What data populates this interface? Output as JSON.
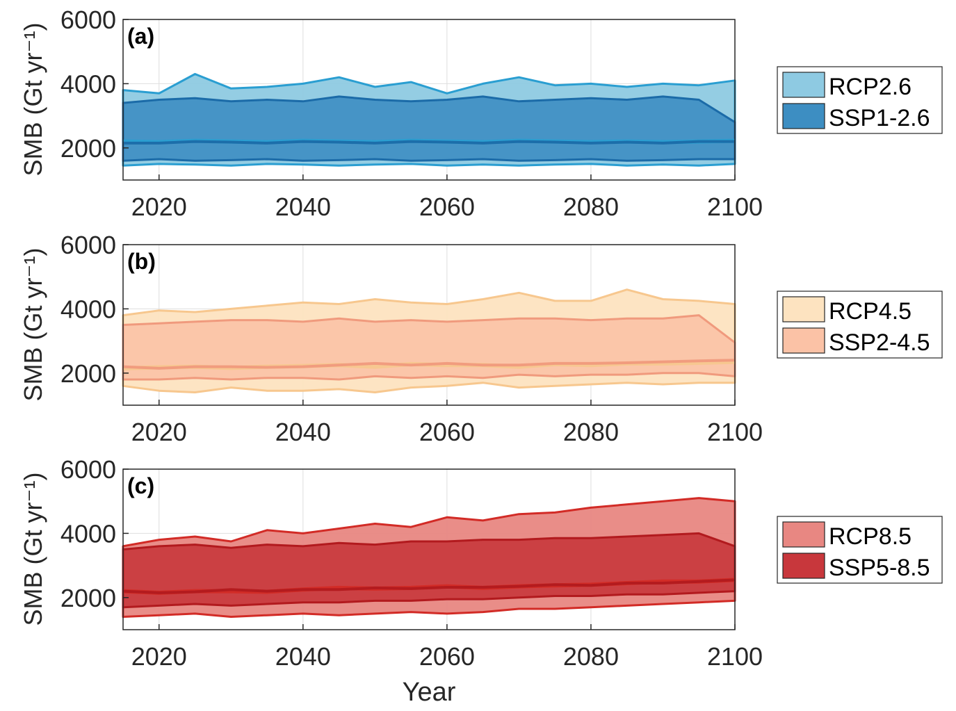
{
  "chart_data": [
    {
      "type": "area",
      "panel_label": "(a)",
      "xlim": [
        2015,
        2100
      ],
      "ylim": [
        1000,
        6000
      ],
      "xticks": [
        2020,
        2040,
        2060,
        2080,
        2100
      ],
      "yticks": [
        2000,
        4000,
        6000
      ],
      "xtick_labels": [
        "2020",
        "2040",
        "2060",
        "2080",
        "2100"
      ],
      "ytick_labels": [
        "2000",
        "4000",
        "6000"
      ],
      "ylabel": "SMB (Gt yr⁻¹)",
      "xlabel": "",
      "grid": true,
      "legend_position": "right",
      "x": [
        2015,
        2020,
        2025,
        2030,
        2035,
        2040,
        2045,
        2050,
        2055,
        2060,
        2065,
        2070,
        2075,
        2080,
        2085,
        2090,
        2095,
        2100
      ],
      "series": [
        {
          "name": "RCP2.6",
          "color": "#8ecae2",
          "edge_color": "#2a9ed1",
          "upper": [
            3800,
            3700,
            4300,
            3850,
            3900,
            4000,
            4200,
            3900,
            4050,
            3700,
            4000,
            4200,
            3950,
            4000,
            3900,
            4000,
            3950,
            4100
          ],
          "lower": [
            1450,
            1500,
            1480,
            1450,
            1500,
            1480,
            1450,
            1480,
            1500,
            1450,
            1480,
            1450,
            1480,
            1500,
            1450,
            1480,
            1450,
            1500
          ],
          "median": [
            2200,
            2180,
            2220,
            2200,
            2180,
            2220,
            2200,
            2180,
            2220,
            2200,
            2180,
            2220,
            2200,
            2180,
            2200,
            2180,
            2200,
            2220
          ]
        },
        {
          "name": "SSP1-2.6",
          "color": "#3d8ec2",
          "edge_color": "#1b6ba8",
          "upper": [
            3400,
            3500,
            3550,
            3450,
            3500,
            3450,
            3600,
            3500,
            3450,
            3500,
            3600,
            3450,
            3500,
            3550,
            3500,
            3600,
            3500,
            2800
          ],
          "lower": [
            1600,
            1650,
            1600,
            1620,
            1650,
            1600,
            1620,
            1650,
            1600,
            1620,
            1650,
            1600,
            1620,
            1650,
            1600,
            1620,
            1650,
            1650
          ],
          "median": [
            2150,
            2150,
            2200,
            2180,
            2150,
            2200,
            2180,
            2150,
            2200,
            2180,
            2150,
            2200,
            2180,
            2150,
            2180,
            2150,
            2200,
            2200
          ]
        }
      ]
    },
    {
      "type": "area",
      "panel_label": "(b)",
      "xlim": [
        2015,
        2100
      ],
      "ylim": [
        1000,
        6000
      ],
      "xticks": [
        2020,
        2040,
        2060,
        2080,
        2100
      ],
      "yticks": [
        2000,
        4000,
        6000
      ],
      "xtick_labels": [
        "2020",
        "2040",
        "2060",
        "2080",
        "2100"
      ],
      "ytick_labels": [
        "2000",
        "4000",
        "6000"
      ],
      "ylabel": "SMB (Gt yr⁻¹)",
      "xlabel": "",
      "grid": true,
      "legend_position": "right",
      "x": [
        2015,
        2020,
        2025,
        2030,
        2035,
        2040,
        2045,
        2050,
        2055,
        2060,
        2065,
        2070,
        2075,
        2080,
        2085,
        2090,
        2095,
        2100
      ],
      "series": [
        {
          "name": "RCP4.5",
          "color": "#fde3c0",
          "edge_color": "#f7c78e",
          "upper": [
            3800,
            3950,
            3900,
            4000,
            4100,
            4200,
            4150,
            4300,
            4200,
            4150,
            4300,
            4500,
            4250,
            4250,
            4600,
            4300,
            4250,
            4150
          ],
          "lower": [
            1600,
            1450,
            1400,
            1550,
            1450,
            1450,
            1500,
            1400,
            1550,
            1600,
            1700,
            1550,
            1600,
            1650,
            1700,
            1650,
            1700,
            1700
          ],
          "median": [
            2150,
            2180,
            2200,
            2160,
            2200,
            2220,
            2250,
            2200,
            2280,
            2250,
            2250,
            2200,
            2280,
            2250,
            2300,
            2300,
            2320,
            2350
          ]
        },
        {
          "name": "SSP2-4.5",
          "color": "#fbc2a6",
          "edge_color": "#f09a7d",
          "upper": [
            3500,
            3550,
            3600,
            3650,
            3650,
            3600,
            3700,
            3600,
            3650,
            3600,
            3650,
            3700,
            3700,
            3650,
            3700,
            3700,
            3800,
            2950
          ],
          "lower": [
            1800,
            1800,
            1850,
            1800,
            1850,
            1850,
            1800,
            1900,
            1850,
            1900,
            1850,
            1950,
            1900,
            1950,
            1950,
            2000,
            2000,
            1900
          ],
          "median": [
            2200,
            2150,
            2200,
            2200,
            2180,
            2200,
            2250,
            2300,
            2250,
            2300,
            2250,
            2250,
            2300,
            2300,
            2320,
            2350,
            2380,
            2400
          ]
        }
      ]
    },
    {
      "type": "area",
      "panel_label": "(c)",
      "xlim": [
        2015,
        2100
      ],
      "ylim": [
        1000,
        6000
      ],
      "xticks": [
        2020,
        2040,
        2060,
        2080,
        2100
      ],
      "yticks": [
        2000,
        4000,
        6000
      ],
      "xtick_labels": [
        "2020",
        "2040",
        "2060",
        "2080",
        "2100"
      ],
      "ytick_labels": [
        "2000",
        "4000",
        "6000"
      ],
      "ylabel": "SMB (Gt yr⁻¹)",
      "xlabel": "Year",
      "grid": true,
      "legend_position": "right",
      "x": [
        2015,
        2020,
        2025,
        2030,
        2035,
        2040,
        2045,
        2050,
        2055,
        2060,
        2065,
        2070,
        2075,
        2080,
        2085,
        2090,
        2095,
        2100
      ],
      "series": [
        {
          "name": "RCP8.5",
          "color": "#e88782",
          "edge_color": "#d22b26",
          "upper": [
            3600,
            3800,
            3900,
            3750,
            4100,
            4000,
            4150,
            4300,
            4200,
            4500,
            4400,
            4600,
            4650,
            4800,
            4900,
            5000,
            5100,
            5000
          ],
          "lower": [
            1400,
            1450,
            1500,
            1400,
            1450,
            1500,
            1450,
            1500,
            1550,
            1500,
            1550,
            1650,
            1650,
            1700,
            1750,
            1800,
            1850,
            1900
          ],
          "median": [
            2200,
            2150,
            2200,
            2200,
            2180,
            2250,
            2300,
            2280,
            2300,
            2350,
            2300,
            2350,
            2380,
            2400,
            2450,
            2500,
            2500,
            2550
          ]
        },
        {
          "name": "SSP5-8.5",
          "color": "#c8373c",
          "edge_color": "#b21a1e",
          "upper": [
            3500,
            3600,
            3650,
            3550,
            3650,
            3600,
            3700,
            3650,
            3750,
            3750,
            3800,
            3800,
            3850,
            3850,
            3900,
            3950,
            4000,
            3600
          ],
          "lower": [
            1700,
            1750,
            1800,
            1750,
            1800,
            1850,
            1850,
            1900,
            1900,
            1950,
            1950,
            2000,
            2050,
            2050,
            2100,
            2100,
            2150,
            2200
          ],
          "median": [
            2200,
            2150,
            2180,
            2250,
            2200,
            2250,
            2250,
            2300,
            2280,
            2320,
            2320,
            2350,
            2400,
            2380,
            2450,
            2450,
            2500,
            2550
          ]
        }
      ]
    }
  ]
}
